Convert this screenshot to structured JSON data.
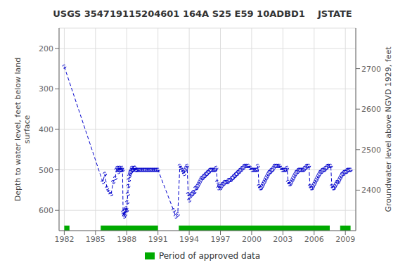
{
  "chart_data": {
    "type": "line",
    "title": "USGS 354719115204601 164A S25 E59 10ADBD1    JSTATE",
    "ylabel": "Depth to water level, feet below land\nsurface",
    "y2label": "Groundwater level above NGVD 1929, feet",
    "color": "#0000cc",
    "marker": "o",
    "line_style": "dashed",
    "grid": true,
    "legend": "bottom",
    "xlim": [
      1981.5,
      2010.0
    ],
    "xticks": [
      1982,
      1985,
      1988,
      1991,
      1994,
      1997,
      2000,
      2003,
      2006,
      2009
    ],
    "ylim": [
      650,
      150
    ],
    "yticks": [
      200,
      300,
      400,
      500,
      600
    ],
    "y2lim": [
      2300,
      2800
    ],
    "y2ticks": [
      2700,
      2600,
      2500,
      2400
    ],
    "approved_periods": {
      "name": "Period of approved data",
      "color": "#00aa00",
      "periods": [
        [
          1982.0,
          1982.5
        ],
        [
          1985.5,
          1991.0
        ],
        [
          1993.0,
          2007.5
        ],
        [
          2008.5,
          2009.5
        ]
      ]
    },
    "x": [
      1982.0,
      1985.7,
      1985.9,
      1986.1,
      1986.3,
      1986.5,
      1986.7,
      1986.9,
      1987.0,
      1987.1,
      1987.15,
      1987.2,
      1987.25,
      1987.3,
      1987.35,
      1987.4,
      1987.45,
      1987.5,
      1987.55,
      1987.6,
      1987.65,
      1987.7,
      1987.75,
      1987.8,
      1987.85,
      1987.9,
      1987.95,
      1988.0,
      1988.05,
      1988.1,
      1988.15,
      1988.2,
      1988.25,
      1988.3,
      1988.35,
      1988.4,
      1988.45,
      1988.5,
      1988.55,
      1988.6,
      1988.65,
      1988.7,
      1988.75,
      1988.8,
      1988.85,
      1988.9,
      1988.95,
      1989.0,
      1989.1,
      1989.2,
      1989.3,
      1989.4,
      1989.5,
      1989.6,
      1989.7,
      1989.8,
      1989.9,
      1990.0,
      1990.1,
      1990.2,
      1990.3,
      1990.4,
      1990.5,
      1990.6,
      1990.7,
      1990.8,
      1990.9,
      1991.0,
      1992.5,
      1992.7,
      1992.9,
      1993.1,
      1993.2,
      1993.3,
      1993.4,
      1993.5,
      1993.6,
      1993.7,
      1993.8,
      1993.9,
      1994.0,
      1994.1,
      1994.2,
      1994.3,
      1994.4,
      1994.5,
      1994.6,
      1994.7,
      1994.8,
      1994.9,
      1995.0,
      1995.1,
      1995.2,
      1995.3,
      1995.4,
      1995.5,
      1995.6,
      1995.7,
      1995.8,
      1995.9,
      1996.0,
      1996.1,
      1996.2,
      1996.3,
      1996.4,
      1996.5,
      1996.6,
      1996.7,
      1996.8,
      1996.9,
      1997.0,
      1997.1,
      1997.2,
      1997.3,
      1997.4,
      1997.5,
      1997.6,
      1997.7,
      1997.8,
      1997.9,
      1998.0,
      1998.1,
      1998.2,
      1998.3,
      1998.4,
      1998.5,
      1998.6,
      1998.7,
      1998.8,
      1998.9,
      1999.0,
      1999.1,
      1999.2,
      1999.3,
      1999.4,
      1999.5,
      1999.6,
      1999.7,
      1999.8,
      1999.9,
      2000.0,
      2000.1,
      2000.2,
      2000.3,
      2000.4,
      2000.5,
      2000.6,
      2000.7,
      2000.8,
      2000.9,
      2001.0,
      2001.1,
      2001.2,
      2001.3,
      2001.4,
      2001.5,
      2001.6,
      2001.7,
      2001.8,
      2001.9,
      2002.0,
      2002.1,
      2002.2,
      2002.3,
      2002.4,
      2002.5,
      2002.6,
      2002.7,
      2002.8,
      2002.9,
      2003.0,
      2003.1,
      2003.2,
      2003.3,
      2003.4,
      2003.5,
      2003.6,
      2003.7,
      2003.8,
      2003.9,
      2004.0,
      2004.1,
      2004.2,
      2004.3,
      2004.4,
      2004.5,
      2004.6,
      2004.7,
      2004.8,
      2004.9,
      2005.0,
      2005.1,
      2005.2,
      2005.3,
      2005.4,
      2005.5,
      2005.6,
      2005.7,
      2005.8,
      2005.9,
      2006.0,
      2006.1,
      2006.2,
      2006.3,
      2006.4,
      2006.5,
      2006.6,
      2006.7,
      2006.8,
      2006.9,
      2007.0,
      2007.1,
      2007.2,
      2007.3,
      2007.4,
      2007.5,
      2007.6,
      2007.7,
      2007.8,
      2007.9,
      2008.0,
      2008.1,
      2008.2,
      2008.3,
      2008.4,
      2008.5,
      2008.6,
      2008.7,
      2008.8,
      2008.9,
      2009.0,
      2009.1,
      2009.2,
      2009.3,
      2009.4,
      2009.5
    ],
    "values": [
      245,
      530,
      510,
      545,
      555,
      560,
      530,
      520,
      500,
      495,
      500,
      505,
      495,
      500,
      495,
      500,
      500,
      500,
      495,
      500,
      605,
      610,
      615,
      600,
      610,
      600,
      595,
      600,
      580,
      560,
      540,
      525,
      515,
      510,
      505,
      505,
      500,
      495,
      500,
      500,
      500,
      495,
      495,
      495,
      500,
      500,
      500,
      500,
      500,
      500,
      500,
      500,
      500,
      500,
      500,
      500,
      500,
      500,
      500,
      500,
      500,
      500,
      500,
      500,
      500,
      500,
      500,
      500,
      600,
      615,
      610,
      490,
      495,
      500,
      505,
      510,
      500,
      495,
      490,
      560,
      575,
      565,
      560,
      560,
      555,
      555,
      545,
      545,
      540,
      535,
      530,
      525,
      520,
      520,
      515,
      515,
      510,
      510,
      505,
      505,
      500,
      500,
      500,
      500,
      500,
      500,
      495,
      530,
      545,
      540,
      545,
      540,
      535,
      535,
      530,
      530,
      530,
      530,
      525,
      525,
      525,
      520,
      520,
      515,
      515,
      510,
      510,
      505,
      505,
      500,
      500,
      495,
      495,
      490,
      490,
      490,
      490,
      490,
      495,
      495,
      500,
      500,
      500,
      500,
      500,
      500,
      490,
      540,
      545,
      545,
      540,
      535,
      530,
      525,
      520,
      515,
      510,
      505,
      505,
      500,
      500,
      495,
      490,
      490,
      490,
      490,
      490,
      490,
      495,
      500,
      500,
      500,
      500,
      500,
      495,
      530,
      535,
      535,
      530,
      525,
      520,
      515,
      510,
      505,
      505,
      500,
      500,
      500,
      500,
      500,
      500,
      495,
      495,
      490,
      490,
      490,
      540,
      545,
      545,
      540,
      535,
      530,
      525,
      520,
      515,
      510,
      505,
      505,
      500,
      500,
      500,
      495,
      495,
      490,
      490,
      490,
      490,
      540,
      545,
      545,
      540,
      535,
      530,
      530,
      525,
      520,
      515,
      510,
      510,
      505,
      505,
      505,
      500,
      500,
      500,
      500
    ]
  }
}
